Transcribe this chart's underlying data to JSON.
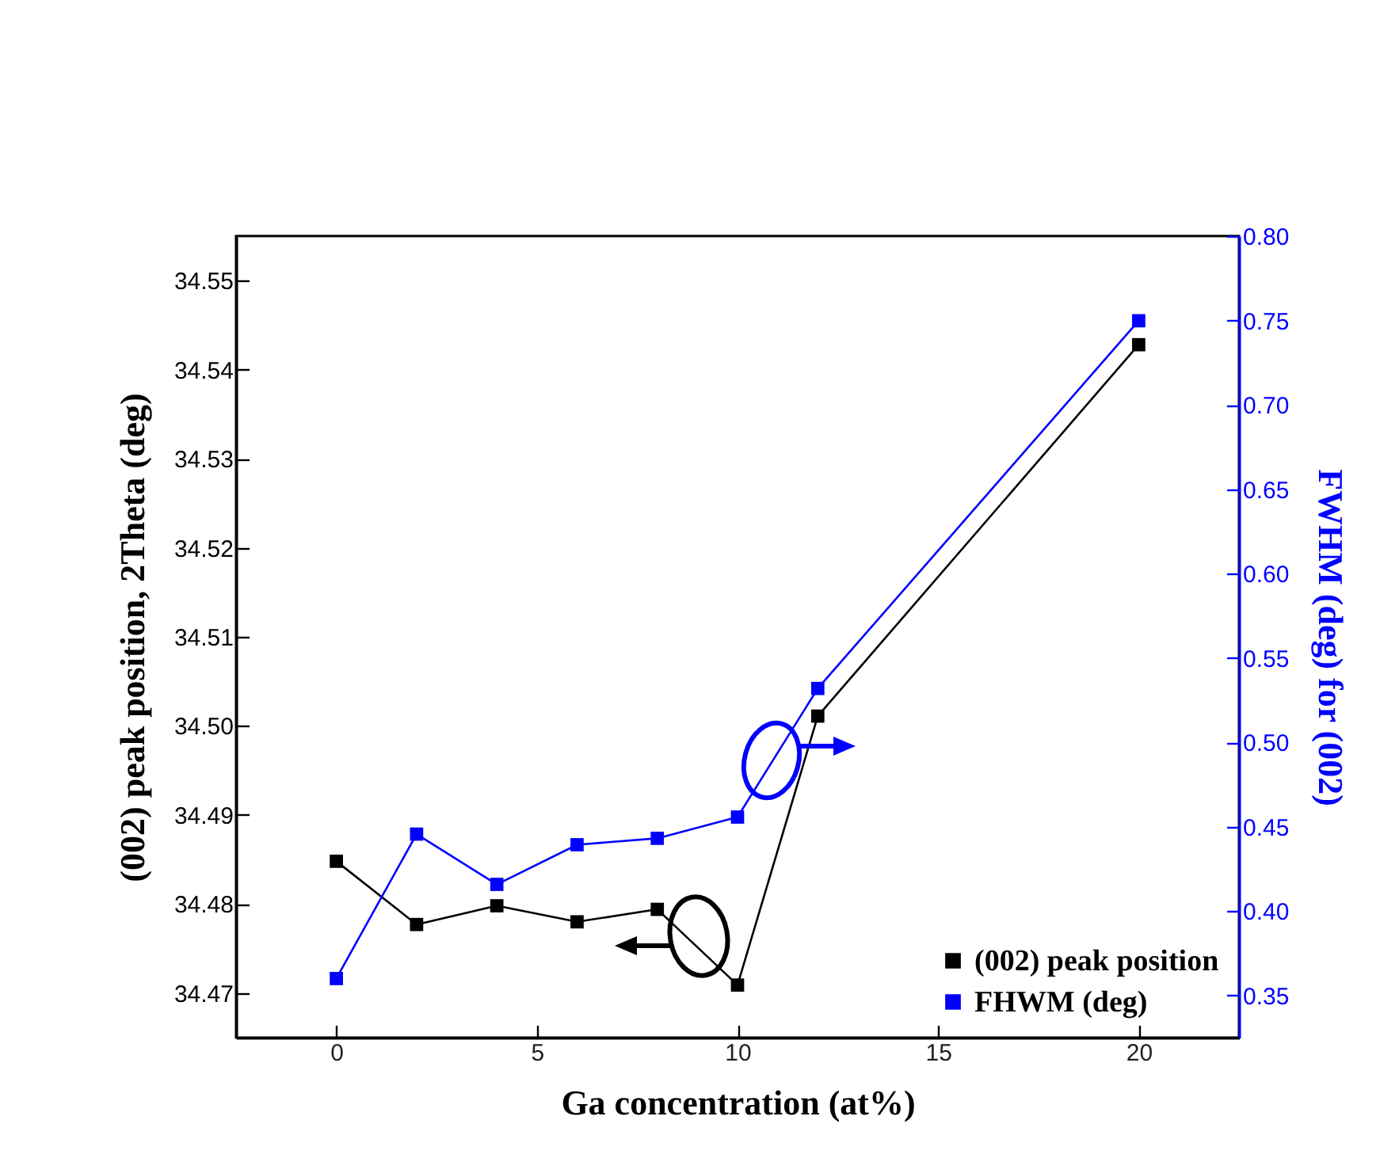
{
  "chart_data": {
    "type": "line",
    "xlabel": "Ga concentration (at%)",
    "ylabel": "(002) peak position, 2Theta (deg)",
    "y2label": "FWHM (deg) for (002)",
    "x": [
      0,
      2,
      4,
      6,
      8,
      10,
      12,
      20
    ],
    "series": [
      {
        "name": "(002) peak position",
        "color": "#000000",
        "values": [
          34.4848,
          34.4777,
          34.4798,
          34.478,
          34.4794,
          34.4709,
          34.5011,
          34.5428
        ]
      },
      {
        "name": "FHWM (deg)",
        "color": "#0000ff",
        "axis": "y2",
        "values": [
          0.36,
          0.4456,
          0.4158,
          0.4393,
          0.4431,
          0.4557,
          0.5319,
          0.7498
        ]
      }
    ],
    "xlim": [
      -2.5,
      22.5
    ],
    "xticks": [
      0,
      5,
      10,
      15,
      20
    ],
    "ylim": [
      34.465,
      34.555
    ],
    "yticks": [
      34.47,
      34.48,
      34.49,
      {
        "value": 34.5,
        "label": "34.50"
      },
      34.51,
      34.52,
      34.53,
      34.54,
      34.55
    ],
    "y2lim": [
      0.325,
      0.8
    ],
    "y2ticks": [
      0.35,
      {
        "value": 0.4,
        "label": "0.40"
      },
      0.45,
      {
        "value": 0.5,
        "label": "0.50"
      },
      0.55,
      {
        "value": 0.6,
        "label": "0.60"
      },
      0.65,
      {
        "value": 0.7,
        "label": "0.70"
      },
      0.75,
      {
        "value": 0.8,
        "label": "0.80"
      }
    ],
    "marker": "square",
    "line_style": "solid",
    "grid": false,
    "legend": "bottom right"
  }
}
